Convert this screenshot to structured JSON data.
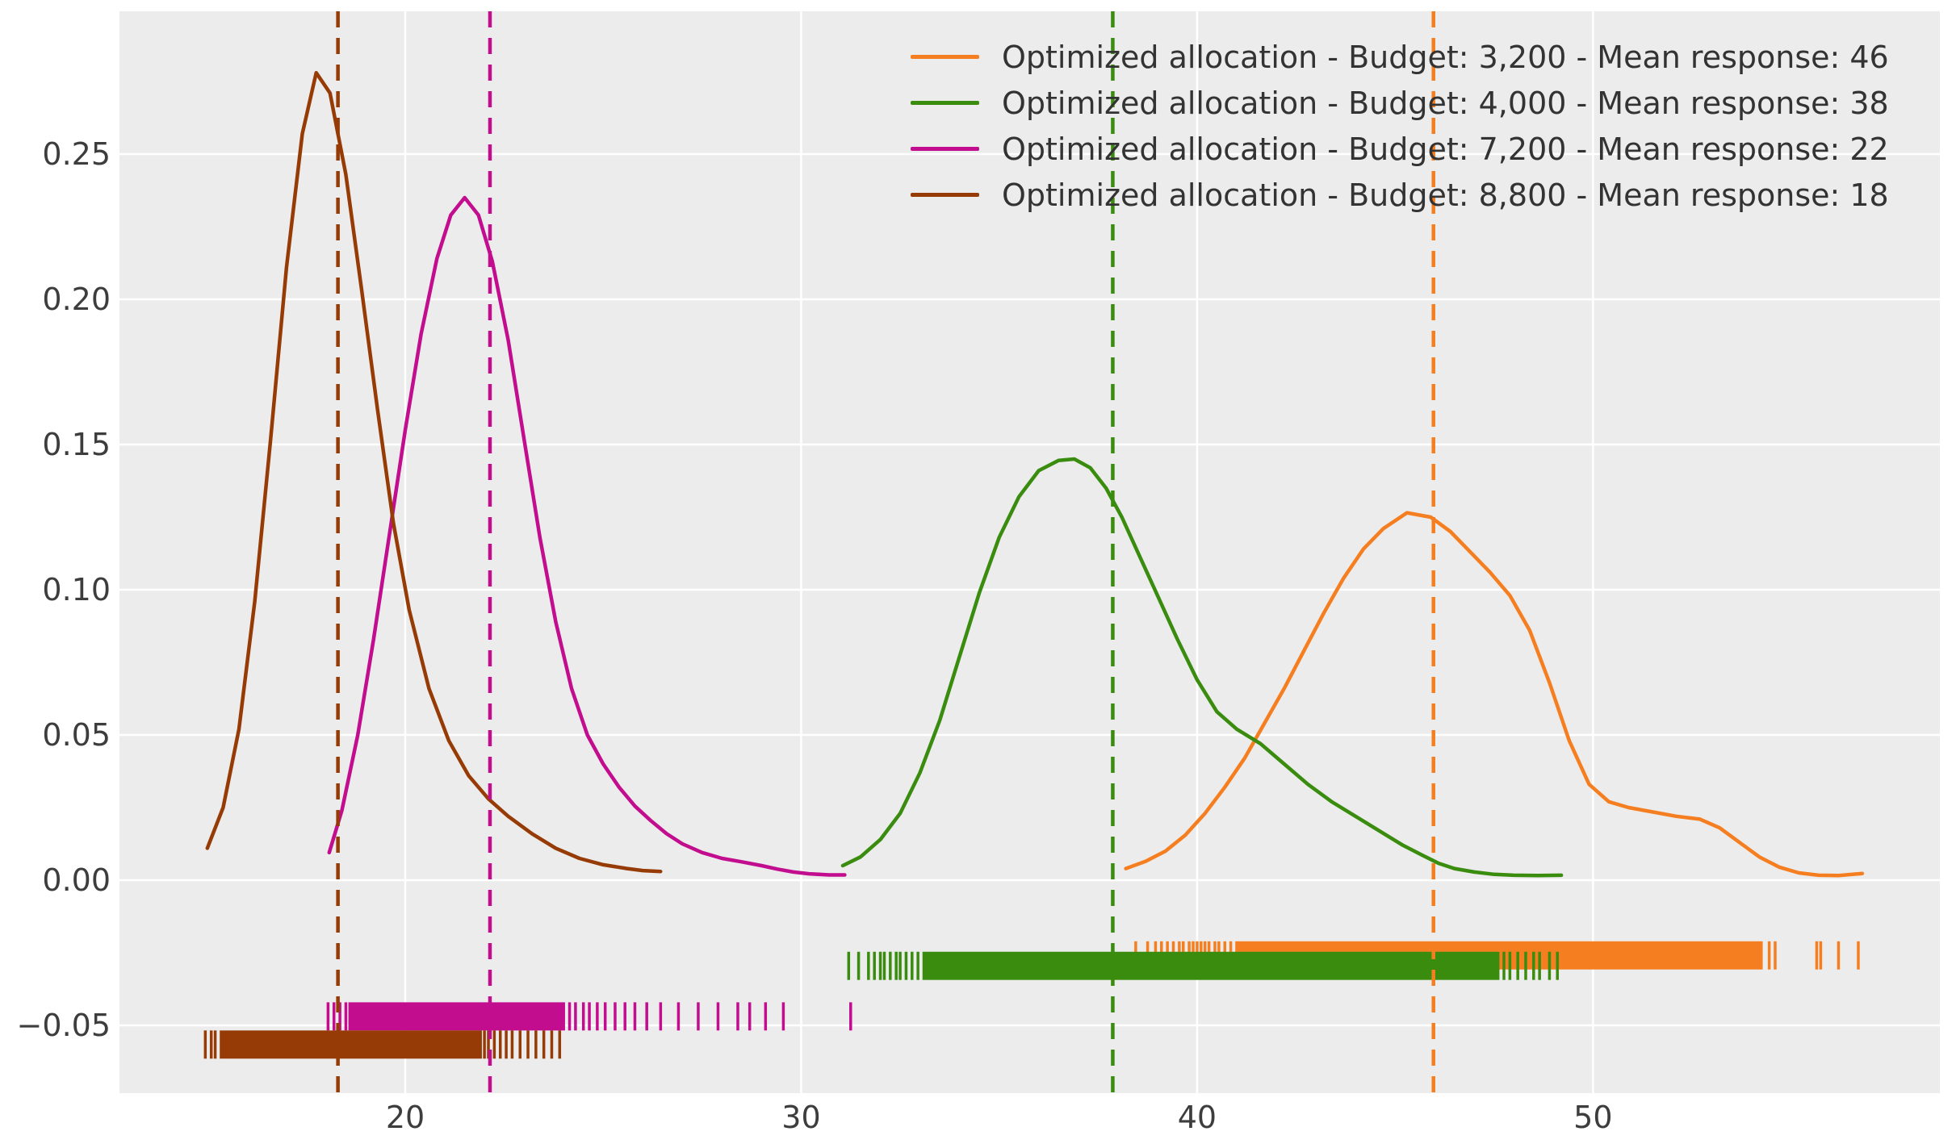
{
  "figure": {
    "background": "#ffffff",
    "plot_background": "#ececec",
    "grid_color": "#ffffff",
    "tick_label_color": "#3d3d3d",
    "legend_text_color": "#333333"
  },
  "chart_data": {
    "type": "line",
    "title": "",
    "xlabel": "",
    "ylabel": "",
    "grid": true,
    "legend_position": "upper right",
    "xlim": [
      12.782,
      58.76
    ],
    "ylim": [
      -0.07333,
      0.29917
    ],
    "x_ticks": [
      20,
      30,
      40,
      50
    ],
    "x_tick_labels": [
      "20",
      "30",
      "40",
      "50"
    ],
    "y_ticks": [
      -0.05,
      0.0,
      0.05,
      0.1,
      0.15,
      0.2,
      0.25
    ],
    "y_tick_labels": [
      "−0.05",
      "0.00",
      "0.05",
      "0.10",
      "0.15",
      "0.20",
      "0.25"
    ],
    "rug_tick_height": 0.0097,
    "series": [
      {
        "id": "budget-3200",
        "label": "Optimized allocation - Budget: 3,200 - Mean response: 46",
        "budget": "3,200",
        "mean_response": 46,
        "color": "#f57e20",
        "mean_line_x": 45.97,
        "rug_y_center": -0.0259,
        "rug_solid": [
          [
            41.0,
            54.25
          ]
        ],
        "rug_ticks": [
          38.45,
          38.75,
          38.95,
          39.1,
          39.25,
          39.4,
          39.55,
          39.65,
          39.8,
          39.9,
          40.0,
          40.1,
          40.2,
          40.3,
          40.45,
          40.55,
          40.7,
          40.85,
          54.45,
          54.6,
          55.65,
          55.75,
          56.2,
          56.7
        ],
        "curve": [
          [
            38.2,
            0.004
          ],
          [
            38.7,
            0.0065
          ],
          [
            39.2,
            0.01
          ],
          [
            39.7,
            0.0155
          ],
          [
            40.2,
            0.023
          ],
          [
            40.7,
            0.032
          ],
          [
            41.2,
            0.042
          ],
          [
            41.7,
            0.054
          ],
          [
            42.2,
            0.066
          ],
          [
            42.7,
            0.079
          ],
          [
            43.2,
            0.092
          ],
          [
            43.7,
            0.104
          ],
          [
            44.2,
            0.114
          ],
          [
            44.7,
            0.121
          ],
          [
            45.3,
            0.1265
          ],
          [
            45.9,
            0.125
          ],
          [
            46.4,
            0.12
          ],
          [
            46.9,
            0.113
          ],
          [
            47.4,
            0.106
          ],
          [
            47.9,
            0.098
          ],
          [
            48.4,
            0.086
          ],
          [
            48.9,
            0.068
          ],
          [
            49.4,
            0.048
          ],
          [
            49.9,
            0.033
          ],
          [
            50.4,
            0.027
          ],
          [
            50.9,
            0.025
          ],
          [
            51.5,
            0.0235
          ],
          [
            52.1,
            0.022
          ],
          [
            52.7,
            0.021
          ],
          [
            53.2,
            0.018
          ],
          [
            53.7,
            0.013
          ],
          [
            54.2,
            0.008
          ],
          [
            54.7,
            0.0045
          ],
          [
            55.2,
            0.0025
          ],
          [
            55.7,
            0.0017
          ],
          [
            56.2,
            0.0016
          ],
          [
            56.8,
            0.0023
          ]
        ]
      },
      {
        "id": "budget-4000",
        "label": "Optimized allocation - Budget: 4,000 - Mean response: 38",
        "budget": "4,000",
        "mean_response": 38,
        "color": "#3a8c0f",
        "mean_line_x": 37.87,
        "rug_y_center": -0.0295,
        "rug_solid": [
          [
            33.1,
            47.6
          ]
        ],
        "rug_ticks": [
          31.2,
          31.45,
          31.7,
          31.85,
          32.0,
          32.1,
          32.25,
          32.4,
          32.5,
          32.65,
          32.8,
          32.95,
          47.75,
          47.9,
          48.1,
          48.3,
          48.5,
          48.65,
          48.9,
          49.1
        ],
        "curve": [
          [
            31.05,
            0.005
          ],
          [
            31.5,
            0.008
          ],
          [
            32.0,
            0.014
          ],
          [
            32.5,
            0.023
          ],
          [
            33.0,
            0.037
          ],
          [
            33.5,
            0.055
          ],
          [
            34.0,
            0.077
          ],
          [
            34.5,
            0.099
          ],
          [
            35.0,
            0.118
          ],
          [
            35.5,
            0.132
          ],
          [
            36.0,
            0.141
          ],
          [
            36.5,
            0.1445
          ],
          [
            36.9,
            0.145
          ],
          [
            37.3,
            0.142
          ],
          [
            37.7,
            0.135
          ],
          [
            38.1,
            0.125
          ],
          [
            38.5,
            0.113
          ],
          [
            39.0,
            0.098
          ],
          [
            39.5,
            0.083
          ],
          [
            40.0,
            0.069
          ],
          [
            40.5,
            0.058
          ],
          [
            41.0,
            0.052
          ],
          [
            41.6,
            0.047
          ],
          [
            42.2,
            0.04
          ],
          [
            42.8,
            0.033
          ],
          [
            43.4,
            0.027
          ],
          [
            44.0,
            0.022
          ],
          [
            44.6,
            0.017
          ],
          [
            45.2,
            0.012
          ],
          [
            45.7,
            0.0085
          ],
          [
            46.1,
            0.0058
          ],
          [
            46.5,
            0.004
          ],
          [
            47.0,
            0.0028
          ],
          [
            47.5,
            0.002
          ],
          [
            48.0,
            0.0017
          ],
          [
            48.6,
            0.0016
          ],
          [
            49.2,
            0.0017
          ]
        ]
      },
      {
        "id": "budget-7200",
        "label": "Optimized allocation - Budget: 7,200 - Mean response: 22",
        "budget": "7,200",
        "mean_response": 22,
        "color": "#c20d8e",
        "mean_line_x": 22.14,
        "rug_y_center": -0.0469,
        "rug_solid": [
          [
            18.6,
            24.0
          ]
        ],
        "rug_ticks": [
          18.05,
          18.2,
          18.35,
          18.5,
          24.15,
          24.3,
          24.5,
          24.65,
          24.85,
          25.05,
          25.3,
          25.55,
          25.8,
          26.1,
          26.45,
          26.9,
          27.4,
          27.9,
          28.4,
          28.7,
          29.1,
          29.55,
          31.25
        ],
        "curve": [
          [
            18.08,
            0.0095
          ],
          [
            18.4,
            0.024
          ],
          [
            18.8,
            0.05
          ],
          [
            19.2,
            0.083
          ],
          [
            19.6,
            0.119
          ],
          [
            20.0,
            0.155
          ],
          [
            20.4,
            0.188
          ],
          [
            20.8,
            0.214
          ],
          [
            21.15,
            0.229
          ],
          [
            21.5,
            0.235
          ],
          [
            21.85,
            0.229
          ],
          [
            22.2,
            0.213
          ],
          [
            22.6,
            0.186
          ],
          [
            23.0,
            0.152
          ],
          [
            23.4,
            0.118
          ],
          [
            23.8,
            0.089
          ],
          [
            24.2,
            0.066
          ],
          [
            24.6,
            0.05
          ],
          [
            25.0,
            0.04
          ],
          [
            25.4,
            0.032
          ],
          [
            25.8,
            0.0255
          ],
          [
            26.2,
            0.0205
          ],
          [
            26.6,
            0.016
          ],
          [
            27.0,
            0.0125
          ],
          [
            27.5,
            0.0095
          ],
          [
            28.0,
            0.0075
          ],
          [
            28.5,
            0.0063
          ],
          [
            29.0,
            0.005
          ],
          [
            29.4,
            0.0038
          ],
          [
            29.8,
            0.0028
          ],
          [
            30.2,
            0.0022
          ],
          [
            30.7,
            0.0018
          ],
          [
            31.1,
            0.0018
          ]
        ]
      },
      {
        "id": "budget-8800",
        "label": "Optimized allocation - Budget: 8,800 - Mean response: 18",
        "budget": "8,800",
        "mean_response": 18,
        "color": "#963b06",
        "mean_line_x": 18.3,
        "rug_y_center": -0.0566,
        "rug_solid": [
          [
            15.35,
            21.9
          ]
        ],
        "rug_ticks": [
          14.95,
          15.1,
          15.2,
          22.0,
          22.1,
          22.25,
          22.4,
          22.55,
          22.7,
          22.9,
          23.1,
          23.3,
          23.5,
          23.7,
          23.9
        ],
        "curve": [
          [
            15.0,
            0.011
          ],
          [
            15.4,
            0.025
          ],
          [
            15.8,
            0.052
          ],
          [
            16.2,
            0.096
          ],
          [
            16.6,
            0.152
          ],
          [
            17.0,
            0.211
          ],
          [
            17.4,
            0.257
          ],
          [
            17.75,
            0.278
          ],
          [
            18.1,
            0.271
          ],
          [
            18.5,
            0.243
          ],
          [
            18.9,
            0.203
          ],
          [
            19.3,
            0.162
          ],
          [
            19.7,
            0.123
          ],
          [
            20.1,
            0.093
          ],
          [
            20.6,
            0.066
          ],
          [
            21.1,
            0.048
          ],
          [
            21.6,
            0.036
          ],
          [
            22.1,
            0.028
          ],
          [
            22.6,
            0.022
          ],
          [
            23.2,
            0.016
          ],
          [
            23.8,
            0.011
          ],
          [
            24.4,
            0.0075
          ],
          [
            25.0,
            0.0053
          ],
          [
            25.6,
            0.004
          ],
          [
            26.0,
            0.0033
          ],
          [
            26.45,
            0.003
          ]
        ]
      }
    ]
  }
}
